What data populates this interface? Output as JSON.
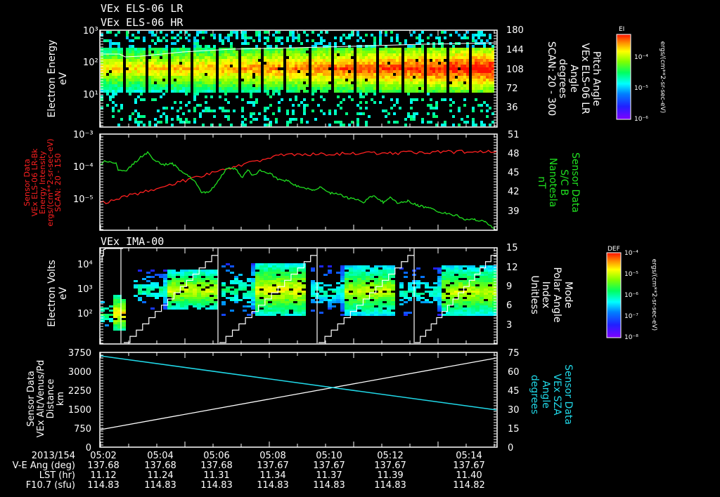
{
  "titles": {
    "panel1_title_1": "VEx ELS-06 LR",
    "panel1_title_2": "VEx ELS-06 HR",
    "panel3_title": "VEx IMA-00"
  },
  "panel1": {
    "ylabel_1": "Electron Energy",
    "ylabel_2": "eV",
    "yticks": [
      "10³",
      "10²",
      "10¹"
    ],
    "y2ticks": [
      "180",
      "144",
      "108",
      "72",
      "36"
    ],
    "y2label": [
      "Pitch Angle",
      "VEx ELS-06 LR",
      "Angle",
      "degrees",
      "SCAN: 20 - 300"
    ],
    "colorbar": {
      "title": "EI",
      "ticks": [
        "10⁻⁴",
        "10⁻⁵",
        "10⁻⁶"
      ],
      "unit": "ergs/(cm**2-sr-sec-eV)"
    }
  },
  "panel2": {
    "ylabel": [
      "Sensor Data",
      "VEx ELS-06 LR-Bk",
      "Energy Intensity",
      "ergs/(cm**2-sr-sec-eV)",
      "SCAN: 20 - 150"
    ],
    "yticks": [
      "10⁻³",
      "10⁻⁴",
      "10⁻⁵"
    ],
    "y2ticks": [
      "51",
      "48",
      "45",
      "42",
      "39"
    ],
    "y2label": [
      "Sensor Data",
      "S/C B",
      "Nanotesla",
      "nT"
    ],
    "colors": {
      "energy": "#ff2020",
      "bfield": "#20e020"
    }
  },
  "panel3": {
    "ylabel_1": "Electron Volts",
    "ylabel_2": "eV",
    "yticks": [
      "10⁴",
      "10³",
      "10²"
    ],
    "y2ticks": [
      "15",
      "12",
      "9",
      "6",
      "3"
    ],
    "y2label": [
      "Mode",
      "Polar Angle",
      "Index",
      "Unitless"
    ],
    "colorbar": {
      "title": "DEF",
      "ticks": [
        "10⁻⁴",
        "10⁻⁵",
        "10⁻⁶",
        "10⁻⁷",
        "10⁻⁸"
      ],
      "unit": "ergs/(cm**2-sr-sec-eV)"
    }
  },
  "panel4": {
    "ylabel": [
      "Sensor Data",
      "VEx Alt/Venus/Pd",
      "Distance",
      "km"
    ],
    "yticks": [
      "3750",
      "3000",
      "2250",
      "1500",
      "750",
      "0"
    ],
    "y2ticks": [
      "75",
      "60",
      "45",
      "30",
      "15",
      "0"
    ],
    "y2label": [
      "Sensor Data",
      "VEx SZA",
      "Angle",
      "degrees"
    ],
    "colors": {
      "altitude": "#ffffff",
      "sza": "#20d8e8"
    }
  },
  "footer": {
    "row_labels": [
      "2013/154",
      "V-E Ang (deg)",
      "LST (hr)",
      "F10.7 (sfu)"
    ],
    "columns": [
      {
        "time": "05:02",
        "ve_ang": "137.68",
        "lst": "11.12",
        "f107": "114.83"
      },
      {
        "time": "05:04",
        "ve_ang": "137.68",
        "lst": "11.24",
        "f107": "114.83"
      },
      {
        "time": "05:06",
        "ve_ang": "137.68",
        "lst": "11.31",
        "f107": "114.83"
      },
      {
        "time": "05:08",
        "ve_ang": "137.67",
        "lst": "11.34",
        "f107": "114.83"
      },
      {
        "time": "05:10",
        "ve_ang": "137.67",
        "lst": "11.37",
        "f107": "114.83"
      },
      {
        "time": "05:12",
        "ve_ang": "137.67",
        "lst": "11.39",
        "f107": "114.83"
      },
      {
        "time": "05:14",
        "ve_ang": "137.67",
        "lst": "11.40",
        "f107": "114.82"
      }
    ]
  },
  "chart_data": [
    {
      "type": "heatmap",
      "title": "VEx ELS-06 LR / VEx ELS-06 HR",
      "xlabel": "UT 2013/154",
      "ylabel": "Electron Energy (eV)",
      "y2label": "Pitch Angle (degrees), SCAN: 20 - 300",
      "x": [
        "05:02",
        "05:04",
        "05:06",
        "05:08",
        "05:10",
        "05:12",
        "05:14"
      ],
      "yscale": "log",
      "ylim": [
        1,
        1000
      ],
      "y2lim": [
        0,
        180
      ],
      "colorbar": {
        "label": "EI ergs/(cm**2-sr-sec-eV)",
        "range": [
          "1e-6",
          "1e-4+"
        ]
      },
      "description": "Peak intensity band near 100 eV strengthening with time; white pitch-angle trace rising from ~120 to ~144 deg"
    },
    {
      "type": "line",
      "title": "Sensor Data",
      "x": [
        "05:02",
        "05:03",
        "05:04",
        "05:05",
        "05:06",
        "05:07",
        "05:08",
        "05:09",
        "05:10",
        "05:11",
        "05:12",
        "05:13",
        "05:14",
        "05:15"
      ],
      "series": [
        {
          "name": "VEx ELS-06 LR-Bk Energy Intensity (ergs/(cm**2-sr-sec-eV))",
          "axis": "left",
          "yscale": "log",
          "values": [
            1e-05,
            2.4e-05,
            2.8e-05,
            4e-05,
            5.5e-05,
            7.5e-05,
            9.5e-05,
            0.000115,
            0.000125,
            0.00013,
            0.000135,
            0.000135,
            0.000138,
            0.00014
          ]
        },
        {
          "name": "S/C B (nT)",
          "axis": "right",
          "values": [
            46.5,
            45.8,
            48.2,
            46.3,
            44.5,
            42.5,
            44.8,
            45.2,
            44.6,
            43.8,
            42.8,
            41.8,
            40.6,
            38.2
          ]
        }
      ],
      "ylim": [
        "1e-6",
        "1e-3"
      ],
      "y2lim": [
        36,
        51
      ]
    },
    {
      "type": "heatmap",
      "title": "VEx IMA-00",
      "ylabel": "Electron Volts (eV)",
      "y2label": "Mode Polar Angle Index (Unitless)",
      "yscale": "log",
      "ylim": [
        10,
        30000
      ],
      "y2lim": [
        0,
        15
      ],
      "colorbar": {
        "label": "DEF ergs/(cm**2-sr-sec-eV)",
        "range": [
          "1e-8",
          "1e-4"
        ]
      },
      "description": "Five repeating sweep cycles; white staircase polar-angle index ramps 0 to 15 each cycle"
    },
    {
      "type": "line",
      "title": "Sensor Data",
      "x": [
        "05:02",
        "05:04",
        "05:06",
        "05:08",
        "05:10",
        "05:12",
        "05:14",
        "05:15"
      ],
      "series": [
        {
          "name": "VEx Alt/Venus/Pd Distance (km)",
          "axis": "left",
          "values": [
            750,
            1000,
            1350,
            1750,
            2200,
            2700,
            3200,
            3550
          ]
        },
        {
          "name": "VEx SZA Angle (degrees)",
          "axis": "right",
          "values": [
            72,
            66,
            60,
            53,
            44,
            38,
            32,
            29
          ]
        }
      ],
      "ylim": [
        0,
        3750
      ],
      "y2lim": [
        0,
        75
      ]
    }
  ]
}
